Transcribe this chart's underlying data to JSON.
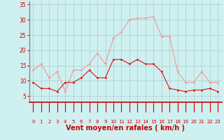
{
  "hours": [
    0,
    1,
    2,
    3,
    4,
    5,
    6,
    7,
    8,
    9,
    10,
    11,
    12,
    13,
    14,
    15,
    16,
    17,
    18,
    19,
    20,
    21,
    22,
    23
  ],
  "wind_avg": [
    9.5,
    7.5,
    7.5,
    6.5,
    9.5,
    9.5,
    11,
    13.5,
    11,
    11,
    17,
    17,
    15.5,
    17,
    15.5,
    15.5,
    13,
    7.5,
    7,
    6.5,
    7,
    7,
    7.5,
    6.5
  ],
  "wind_gust": [
    13.5,
    15.5,
    11,
    13,
    6.5,
    13.5,
    13.5,
    15.5,
    19,
    15.5,
    24,
    26,
    30,
    30.5,
    30.5,
    31,
    24.5,
    24.5,
    13,
    9.5,
    9.5,
    13,
    9.5,
    9.5
  ],
  "bg_color": "#cff0f0",
  "grid_color": "#aacccc",
  "line_avg_color": "#dd1111",
  "line_gust_color": "#ee9999",
  "marker_avg": "D",
  "marker_gust": "D",
  "xlabel": "Vent moyen/en rafales ( km/h )",
  "ylim": [
    3,
    36
  ],
  "yticks": [
    5,
    10,
    15,
    20,
    25,
    30,
    35
  ],
  "xlim": [
    -0.5,
    23.5
  ],
  "xlabel_color": "#cc0000",
  "tick_color": "#cc0000",
  "spine_left_color": "#888888",
  "spine_bottom_color": "#cc0000"
}
